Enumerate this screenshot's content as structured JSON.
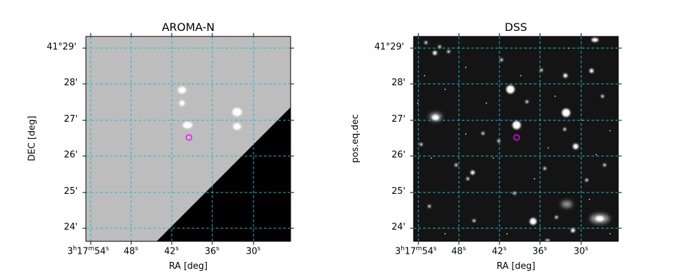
{
  "panels": [
    {
      "title": "AROMA-N",
      "xlabel": "RA [deg]",
      "ylabel": "DEC [deg]",
      "background": "#bdbdbd"
    },
    {
      "title": "DSS",
      "xlabel": "RA [deg]",
      "ylabel": "pos.eq.dec",
      "background": "#141414"
    }
  ],
  "y_ticks": [
    "41°29'",
    "28'",
    "27'",
    "26'",
    "25'",
    "24'"
  ],
  "x_ticks": {
    "first": {
      "h": "3",
      "h_sup": "h",
      "m": "17",
      "m_sup": "m",
      "s": "54",
      "s_sup": "s"
    },
    "rest": [
      {
        "v": "48",
        "sup": "s"
      },
      {
        "v": "42",
        "sup": "s"
      },
      {
        "v": "36",
        "sup": "s"
      },
      {
        "v": "30",
        "sup": "s"
      }
    ]
  },
  "colors": {
    "grid": "#17becf",
    "marker": "#ff00ff",
    "survey_edge": "#000000"
  }
}
